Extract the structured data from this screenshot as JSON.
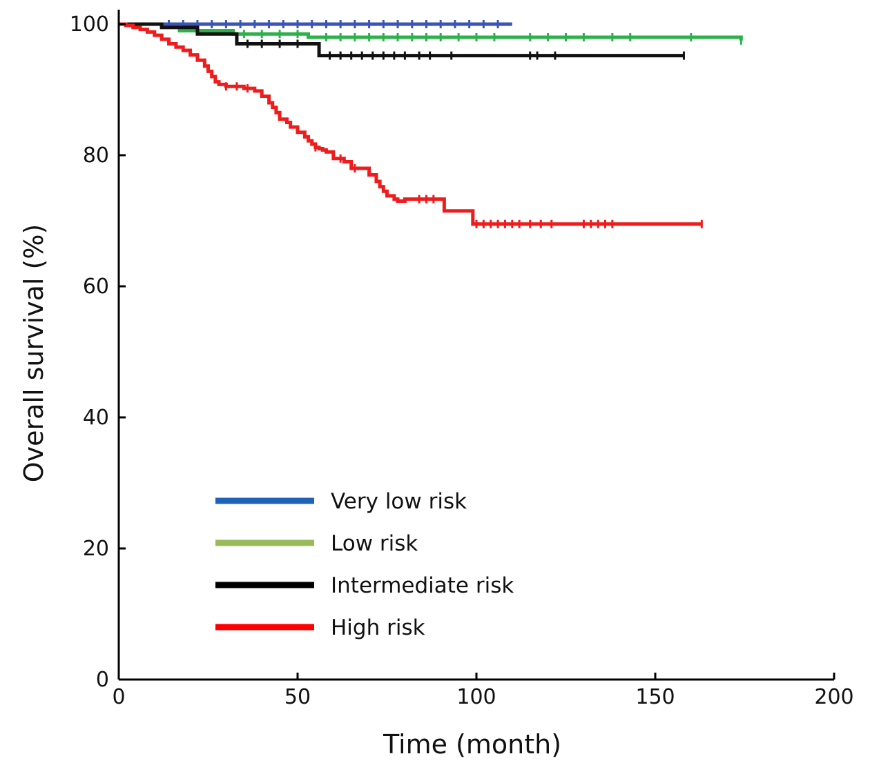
{
  "chart_data": {
    "type": "line",
    "title": "",
    "xlabel": "Time (month)",
    "ylabel": "Overall survival (%)",
    "xlim": [
      0,
      200
    ],
    "ylim": [
      0,
      100
    ],
    "xticks": [
      0,
      50,
      100,
      150,
      200
    ],
    "yticks": [
      0,
      20,
      40,
      60,
      80,
      100
    ],
    "grid": false,
    "legend_position": "bottom-left",
    "step": true,
    "series": [
      {
        "name": "Very low risk",
        "line_color": "#3a55b4",
        "legend_color": "#1f63b8",
        "x": [
          0,
          12,
          110
        ],
        "y": [
          100,
          100,
          100
        ],
        "censored_x": [
          14,
          18,
          22,
          26,
          30,
          34,
          38,
          42,
          46,
          50,
          54,
          58,
          62,
          66,
          70,
          74,
          78,
          82,
          86,
          90,
          94,
          98,
          102,
          106
        ]
      },
      {
        "name": "Low risk",
        "line_color": "#2db14a",
        "legend_color": "#9bbb59",
        "x": [
          0,
          12,
          17,
          32,
          53,
          174
        ],
        "y": [
          100,
          99.5,
          99,
          98.5,
          98,
          97.5
        ],
        "censored_x": [
          35,
          40,
          45,
          50,
          58,
          62,
          66,
          70,
          74,
          78,
          82,
          86,
          90,
          95,
          100,
          105,
          115,
          120,
          125,
          130,
          138,
          143,
          160,
          174
        ]
      },
      {
        "name": "Intermediate risk",
        "line_color": "#111111",
        "legend_color": "#000000",
        "x": [
          0,
          12,
          22,
          33,
          56,
          158
        ],
        "y": [
          100,
          99.5,
          98.5,
          97,
          95.2,
          95.2
        ],
        "censored_x": [
          36,
          40,
          45,
          50,
          59,
          62,
          65,
          68,
          71,
          74,
          77,
          80,
          84,
          87,
          93,
          115,
          117,
          122,
          158
        ]
      },
      {
        "name": "High risk",
        "line_color": "#ee1c1c",
        "legend_color": "#ff0000",
        "x": [
          0,
          2,
          4,
          6,
          8,
          10,
          12,
          14,
          16,
          18,
          20,
          22,
          24,
          25,
          26,
          27,
          28,
          30,
          35,
          38,
          40,
          42,
          43,
          44,
          45,
          47,
          48,
          50,
          52,
          53,
          54,
          55,
          56,
          57,
          58,
          60,
          63,
          65,
          70,
          72,
          73,
          74,
          75,
          77,
          78,
          80,
          85,
          91,
          92,
          99,
          163
        ],
        "y": [
          100,
          99.8,
          99.5,
          99.2,
          98.8,
          98.3,
          97.7,
          97,
          96.5,
          96,
          95.3,
          94.5,
          93.6,
          92.8,
          92,
          91.2,
          90.8,
          90.5,
          90.2,
          89.8,
          89,
          88,
          87.3,
          86.5,
          85.5,
          85,
          84.3,
          83.5,
          82.8,
          82.2,
          81.7,
          81.2,
          81,
          80.8,
          80.5,
          79.5,
          79,
          78,
          77,
          76,
          75.2,
          74.5,
          73.8,
          73.3,
          73,
          73.3,
          73.3,
          71.5,
          71.5,
          69.5,
          69.5
        ],
        "censored_x": [
          30,
          33,
          36,
          55,
          62,
          66,
          84,
          86,
          88,
          100,
          102,
          104,
          106,
          108,
          110,
          112,
          115,
          118,
          121,
          130,
          132,
          134,
          136,
          138,
          163
        ]
      }
    ]
  }
}
